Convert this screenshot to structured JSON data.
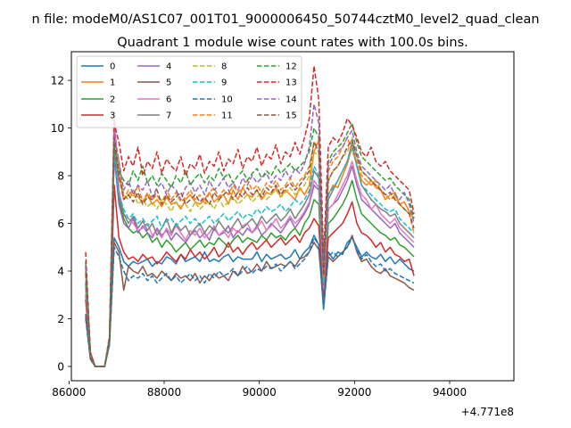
{
  "chart_data": {
    "type": "line",
    "suptitle": "n file: modeM0/AS1C07_001T01_9000006450_50744cztM0_level2_quad_clean",
    "title": "Quadrant 1 module wise count rates with 100.0s bins.",
    "xlabel": "",
    "ylabel": "",
    "x_offset_text": "+4.771e8",
    "xlim": [
      86050,
      95350
    ],
    "ylim": [
      -0.6,
      13.2
    ],
    "xticks": [
      86000,
      88000,
      90000,
      92000,
      94000
    ],
    "yticks": [
      0,
      2,
      4,
      6,
      8,
      10,
      12
    ],
    "grid": false,
    "legend": {
      "placement": "top-left",
      "columns": 4
    },
    "x_start": 86350,
    "x_step": 100,
    "series": [
      {
        "name": "0",
        "color": "#1f77b4",
        "style": "solid",
        "values": [
          2.2,
          0.4,
          0,
          0,
          0,
          1.0,
          5.4,
          5.0,
          4.4,
          4.2,
          4.4,
          4.3,
          4.4,
          4.5,
          4.2,
          4.4,
          4.3,
          4.6,
          4.5,
          4.3,
          4.7,
          4.4,
          4.5,
          4.6,
          4.4,
          4.8,
          4.4,
          4.5,
          4.4,
          4.6,
          4.7,
          4.4,
          4.6,
          4.5,
          4.5,
          4.5,
          4.8,
          4.4,
          4.7,
          4.5,
          4.6,
          4.7,
          4.5,
          4.6,
          4.9,
          4.5,
          4.8,
          5.0,
          5.5,
          5.1,
          2.4,
          4.8,
          4.5,
          4.8,
          4.7,
          5.2,
          5.4,
          5.0,
          4.6,
          4.8,
          4.6,
          4.5,
          4.7,
          4.4,
          4.6,
          4.3,
          4.5,
          4.3,
          4.1,
          4.0
        ]
      },
      {
        "name": "1",
        "color": "#ff7f0e",
        "style": "solid",
        "values": [
          4.2,
          0.5,
          0,
          0,
          0,
          1.1,
          9.8,
          8.0,
          7.0,
          7.2,
          7.4,
          7.1,
          6.9,
          7.2,
          6.8,
          7.0,
          6.7,
          7.1,
          6.8,
          6.9,
          6.6,
          7.0,
          7.2,
          6.9,
          6.8,
          7.0,
          7.3,
          6.9,
          7.1,
          7.2,
          6.8,
          7.4,
          7.0,
          7.5,
          7.2,
          7.1,
          7.4,
          7.0,
          7.3,
          7.2,
          7.5,
          7.1,
          7.4,
          7.2,
          7.0,
          7.5,
          7.2,
          7.6,
          9.0,
          9.5,
          3.0,
          7.2,
          7.6,
          7.5,
          8.0,
          8.5,
          9.2,
          8.4,
          7.8,
          7.6,
          7.8,
          7.5,
          7.4,
          7.0,
          7.2,
          7.3,
          6.8,
          6.9,
          6.5,
          6.2
        ]
      },
      {
        "name": "2",
        "color": "#2ca02c",
        "style": "solid",
        "values": [
          3.0,
          0.4,
          0,
          0,
          0,
          1.0,
          9.0,
          7.0,
          6.2,
          5.8,
          5.6,
          5.7,
          5.4,
          5.6,
          5.2,
          5.4,
          5.0,
          5.3,
          5.1,
          4.8,
          5.0,
          5.2,
          4.9,
          5.1,
          5.3,
          5.0,
          5.2,
          5.1,
          5.4,
          5.2,
          5.0,
          5.3,
          5.5,
          5.2,
          5.4,
          5.3,
          5.2,
          5.5,
          5.3,
          5.6,
          5.4,
          5.5,
          5.3,
          5.6,
          5.8,
          5.5,
          6.0,
          6.3,
          7.0,
          6.8,
          2.8,
          6.0,
          6.2,
          6.5,
          6.8,
          7.2,
          7.8,
          7.0,
          6.4,
          6.2,
          6.0,
          5.8,
          5.6,
          5.5,
          5.3,
          5.4,
          5.1,
          5.0,
          4.8,
          4.6
        ]
      },
      {
        "name": "3",
        "color": "#d62728",
        "style": "solid",
        "values": [
          2.8,
          0.4,
          0,
          0,
          0,
          1.0,
          7.6,
          5.4,
          4.8,
          4.5,
          4.6,
          4.4,
          4.7,
          4.5,
          4.6,
          4.3,
          4.5,
          4.8,
          4.6,
          4.4,
          4.7,
          4.5,
          4.9,
          4.6,
          4.8,
          4.5,
          4.7,
          5.0,
          4.6,
          4.8,
          5.2,
          4.8,
          5.0,
          4.7,
          5.0,
          5.2,
          4.9,
          5.1,
          5.3,
          5.0,
          5.2,
          5.4,
          5.1,
          5.3,
          5.5,
          5.2,
          5.6,
          5.8,
          6.2,
          5.9,
          3.0,
          5.4,
          5.6,
          5.8,
          6.0,
          6.4,
          6.9,
          6.0,
          5.6,
          5.5,
          5.3,
          5.0,
          5.2,
          4.8,
          5.0,
          4.7,
          4.6,
          4.4,
          4.5,
          3.8
        ]
      },
      {
        "name": "4",
        "color": "#9467bd",
        "style": "solid",
        "values": [
          3.5,
          0.5,
          0,
          0,
          0,
          1.1,
          8.8,
          6.8,
          6.0,
          5.8,
          6.2,
          5.6,
          5.9,
          5.6,
          5.4,
          5.8,
          5.5,
          5.7,
          5.3,
          5.6,
          5.4,
          5.2,
          5.5,
          5.7,
          5.4,
          5.6,
          5.3,
          5.8,
          5.5,
          5.6,
          5.9,
          5.4,
          5.7,
          5.5,
          5.8,
          5.6,
          5.9,
          5.5,
          5.7,
          6.0,
          5.8,
          5.6,
          5.9,
          6.2,
          5.8,
          6.1,
          6.4,
          6.8,
          7.6,
          7.4,
          3.2,
          6.6,
          6.8,
          7.0,
          7.4,
          7.8,
          8.4,
          7.6,
          7.0,
          6.8,
          6.6,
          6.4,
          6.2,
          6.0,
          5.8,
          6.0,
          5.6,
          5.4,
          5.2,
          5.0
        ]
      },
      {
        "name": "5",
        "color": "#8c564b",
        "style": "solid",
        "values": [
          2.1,
          0.3,
          0,
          0,
          0,
          0.9,
          5.2,
          4.8,
          3.2,
          4.2,
          4.0,
          3.9,
          4.2,
          3.8,
          3.9,
          3.7,
          4.0,
          3.8,
          3.6,
          3.9,
          3.7,
          3.8,
          3.6,
          3.9,
          3.5,
          3.8,
          3.6,
          3.9,
          3.7,
          3.8,
          3.6,
          4.0,
          3.8,
          4.2,
          3.9,
          4.0,
          4.3,
          4.0,
          4.4,
          4.1,
          4.2,
          4.3,
          4.2,
          4.4,
          4.2,
          4.5,
          4.6,
          4.8,
          5.2,
          4.9,
          2.6,
          4.6,
          4.4,
          4.6,
          4.8,
          5.0,
          5.5,
          4.8,
          4.4,
          4.5,
          4.2,
          4.0,
          3.9,
          4.1,
          3.8,
          3.7,
          3.6,
          3.5,
          3.3,
          3.2
        ]
      },
      {
        "name": "6",
        "color": "#e377c2",
        "style": "solid",
        "values": [
          3.3,
          0.5,
          0,
          0,
          0,
          1.1,
          10.7,
          7.4,
          6.4,
          6.2,
          6.0,
          5.7,
          5.8,
          6.0,
          5.5,
          5.7,
          5.4,
          5.8,
          5.5,
          5.9,
          5.6,
          5.3,
          5.7,
          5.5,
          5.8,
          5.4,
          5.6,
          5.9,
          5.5,
          5.7,
          5.4,
          5.8,
          5.6,
          5.9,
          6.0,
          5.6,
          5.8,
          6.1,
          5.7,
          5.9,
          6.2,
          5.8,
          6.0,
          6.3,
          6.0,
          6.2,
          6.5,
          6.9,
          7.8,
          7.5,
          3.3,
          6.6,
          6.8,
          7.2,
          7.6,
          8.0,
          8.6,
          7.8,
          7.2,
          7.0,
          6.6,
          6.8,
          6.4,
          6.2,
          6.0,
          6.2,
          5.8,
          5.6,
          5.4,
          5.2
        ]
      },
      {
        "name": "7",
        "color": "#7f7f7f",
        "style": "solid",
        "values": [
          3.4,
          0.5,
          0,
          0,
          0,
          1.1,
          9.6,
          7.2,
          6.4,
          6.0,
          6.3,
          5.8,
          6.1,
          5.7,
          6.0,
          5.5,
          5.8,
          6.2,
          5.6,
          6.0,
          5.7,
          5.9,
          5.5,
          5.8,
          6.0,
          5.6,
          5.9,
          5.7,
          6.1,
          5.8,
          5.6,
          5.9,
          6.2,
          5.8,
          6.0,
          6.2,
          5.9,
          6.3,
          6.0,
          6.2,
          6.4,
          6.1,
          6.3,
          6.6,
          6.2,
          6.5,
          6.8,
          7.2,
          8.2,
          7.9,
          3.4,
          7.0,
          7.4,
          7.8,
          8.2,
          8.6,
          9.4,
          8.4,
          7.6,
          7.3,
          7.0,
          6.8,
          6.6,
          6.5,
          6.3,
          6.4,
          6.0,
          5.8,
          5.6,
          5.4
        ]
      },
      {
        "name": "8",
        "color": "#bcbd22",
        "style": "dashed",
        "values": [
          3.6,
          0.5,
          0,
          0,
          0,
          1.1,
          9.5,
          8.4,
          7.2,
          7.0,
          7.3,
          6.8,
          7.0,
          6.7,
          6.9,
          6.6,
          7.0,
          6.8,
          6.5,
          6.9,
          6.7,
          6.8,
          6.5,
          6.9,
          6.6,
          6.8,
          6.9,
          6.6,
          7.0,
          6.7,
          6.9,
          7.1,
          6.8,
          7.0,
          7.2,
          6.9,
          7.1,
          7.3,
          7.0,
          7.2,
          7.4,
          7.1,
          7.3,
          7.5,
          7.2,
          7.4,
          7.6,
          8.0,
          9.0,
          8.8,
          3.6,
          7.8,
          8.2,
          8.4,
          8.8,
          9.0,
          9.6,
          8.8,
          8.2,
          8.0,
          7.8,
          7.6,
          7.4,
          7.2,
          7.0,
          7.1,
          6.8,
          6.6,
          6.4,
          6.2
        ]
      },
      {
        "name": "9",
        "color": "#17becf",
        "style": "dashed",
        "values": [
          3.5,
          0.5,
          0,
          0,
          0,
          1.1,
          9.0,
          7.2,
          6.6,
          6.2,
          6.4,
          6.0,
          6.2,
          5.9,
          6.1,
          6.3,
          5.8,
          6.1,
          6.2,
          5.9,
          6.1,
          6.3,
          6.0,
          6.2,
          5.9,
          6.1,
          6.3,
          6.0,
          6.2,
          6.4,
          6.1,
          6.3,
          6.5,
          6.2,
          6.4,
          6.3,
          6.6,
          6.4,
          6.7,
          6.5,
          6.6,
          6.8,
          6.5,
          6.7,
          7.0,
          6.8,
          7.0,
          7.4,
          8.4,
          8.0,
          3.5,
          7.2,
          7.5,
          7.8,
          8.2,
          8.6,
          9.2,
          8.4,
          7.6,
          7.4,
          7.2,
          7.0,
          6.8,
          6.6,
          6.5,
          6.6,
          6.2,
          6.0,
          5.8,
          5.6
        ]
      },
      {
        "name": "10",
        "color": "#1f77b4",
        "style": "dashed",
        "values": [
          2.0,
          0.3,
          0,
          0,
          0,
          0.9,
          5.0,
          4.6,
          4.0,
          3.6,
          3.8,
          3.7,
          3.9,
          3.6,
          3.8,
          3.5,
          3.7,
          3.9,
          3.6,
          3.8,
          3.5,
          3.7,
          3.9,
          3.6,
          3.8,
          3.5,
          3.9,
          3.7,
          4.0,
          3.8,
          3.9,
          4.1,
          3.8,
          4.0,
          4.2,
          3.9,
          4.1,
          4.0,
          4.2,
          4.1,
          4.3,
          4.0,
          4.2,
          4.4,
          4.1,
          4.3,
          4.5,
          4.8,
          5.4,
          5.1,
          2.4,
          4.6,
          4.8,
          4.6,
          4.8,
          5.0,
          5.4,
          4.9,
          4.5,
          4.7,
          4.4,
          4.2,
          4.3,
          4.0,
          4.1,
          3.9,
          3.8,
          3.7,
          3.6,
          3.5
        ]
      },
      {
        "name": "11",
        "color": "#ff7f0e",
        "style": "dashed",
        "values": [
          4.0,
          0.5,
          0,
          0,
          0,
          1.2,
          9.4,
          8.6,
          7.0,
          7.4,
          7.1,
          7.6,
          6.9,
          7.3,
          7.0,
          7.2,
          6.8,
          7.4,
          7.0,
          7.3,
          6.9,
          7.1,
          7.4,
          7.0,
          7.2,
          6.8,
          7.3,
          7.5,
          7.1,
          7.4,
          7.2,
          7.6,
          7.3,
          7.5,
          7.8,
          7.4,
          7.6,
          7.3,
          7.7,
          7.5,
          7.8,
          7.4,
          7.6,
          7.9,
          7.5,
          7.8,
          8.0,
          8.4,
          9.4,
          9.2,
          3.8,
          8.2,
          8.6,
          8.8,
          9.2,
          9.6,
          9.0,
          8.6,
          8.0,
          7.8,
          7.6,
          7.8,
          7.4,
          7.2,
          7.0,
          7.2,
          6.8,
          6.6,
          6.4,
          5.6
        ]
      },
      {
        "name": "12",
        "color": "#2ca02c",
        "style": "dashed",
        "values": [
          4.4,
          0.6,
          0,
          0,
          0,
          1.2,
          9.2,
          8.2,
          7.8,
          7.6,
          8.2,
          7.8,
          8.4,
          7.7,
          8.0,
          7.6,
          8.1,
          7.8,
          7.5,
          8.0,
          7.7,
          8.2,
          7.6,
          7.9,
          8.1,
          7.7,
          8.0,
          7.8,
          8.3,
          7.9,
          8.1,
          7.7,
          8.0,
          8.2,
          7.8,
          8.1,
          8.3,
          7.9,
          8.2,
          8.0,
          8.4,
          8.1,
          8.3,
          8.5,
          8.2,
          8.4,
          8.6,
          9.0,
          10.0,
          9.6,
          4.2,
          8.6,
          9.0,
          9.2,
          9.4,
          9.8,
          10.2,
          9.4,
          8.8,
          8.6,
          8.4,
          8.2,
          8.0,
          7.8,
          7.9,
          7.6,
          7.4,
          7.2,
          7.0,
          6.2
        ]
      },
      {
        "name": "13",
        "color": "#d62728",
        "style": "dashed",
        "values": [
          4.8,
          0.6,
          0,
          0,
          0,
          1.3,
          10.2,
          9.4,
          8.2,
          8.8,
          8.4,
          9.2,
          8.0,
          8.6,
          8.3,
          9.0,
          8.1,
          8.7,
          8.4,
          8.2,
          8.8,
          8.0,
          8.5,
          8.3,
          8.9,
          8.1,
          8.6,
          8.4,
          9.0,
          8.2,
          8.7,
          8.5,
          9.1,
          8.3,
          8.8,
          8.6,
          9.2,
          8.4,
          8.9,
          8.7,
          9.3,
          8.5,
          9.0,
          8.8,
          9.4,
          8.9,
          9.6,
          10.4,
          12.6,
          11.2,
          4.6,
          9.2,
          9.6,
          9.4,
          9.8,
          10.4,
          10.1,
          9.6,
          9.0,
          8.8,
          9.2,
          8.6,
          8.4,
          8.6,
          8.2,
          8.0,
          7.8,
          7.6,
          7.4,
          6.4
        ]
      },
      {
        "name": "14",
        "color": "#9467bd",
        "style": "dashed",
        "values": [
          4.2,
          0.5,
          0,
          0,
          0,
          1.2,
          9.8,
          8.6,
          7.4,
          7.8,
          7.2,
          7.6,
          7.4,
          7.8,
          7.1,
          7.5,
          7.7,
          7.2,
          7.6,
          7.4,
          7.0,
          7.5,
          7.7,
          7.3,
          7.6,
          7.2,
          7.8,
          7.4,
          7.6,
          7.9,
          7.5,
          7.7,
          7.4,
          7.9,
          7.6,
          8.0,
          7.7,
          7.9,
          8.1,
          7.7,
          8.0,
          7.8,
          8.2,
          7.9,
          8.3,
          8.1,
          8.5,
          9.2,
          11.0,
          10.2,
          4.0,
          8.4,
          8.8,
          9.0,
          9.2,
          9.6,
          9.9,
          9.0,
          8.4,
          8.2,
          8.0,
          7.8,
          7.6,
          7.4,
          7.6,
          7.2,
          7.0,
          7.3,
          6.8,
          6.0
        ]
      },
      {
        "name": "15",
        "color": "#8c564b",
        "style": "dashed",
        "values": [
          3.9,
          0.5,
          0,
          0,
          0,
          1.1,
          9.6,
          8.0,
          7.0,
          7.2,
          6.9,
          7.3,
          6.8,
          7.1,
          7.0,
          7.4,
          6.8,
          7.2,
          6.9,
          7.1,
          7.3,
          6.8,
          7.0,
          7.2,
          6.9,
          7.1,
          6.8,
          7.3,
          7.0,
          7.2,
          7.4,
          7.0,
          7.3,
          7.1,
          7.5,
          7.2,
          7.4,
          7.1,
          7.5,
          7.3,
          7.6,
          7.2,
          7.5,
          7.7,
          7.4,
          7.6,
          7.9,
          8.2,
          9.4,
          9.0,
          3.8,
          7.8,
          8.2,
          8.4,
          8.8,
          9.2,
          9.5,
          8.8,
          8.2,
          8.0,
          7.8,
          7.6,
          7.4,
          7.2,
          7.3,
          7.0,
          6.8,
          6.6,
          6.4,
          5.8
        ]
      }
    ]
  }
}
